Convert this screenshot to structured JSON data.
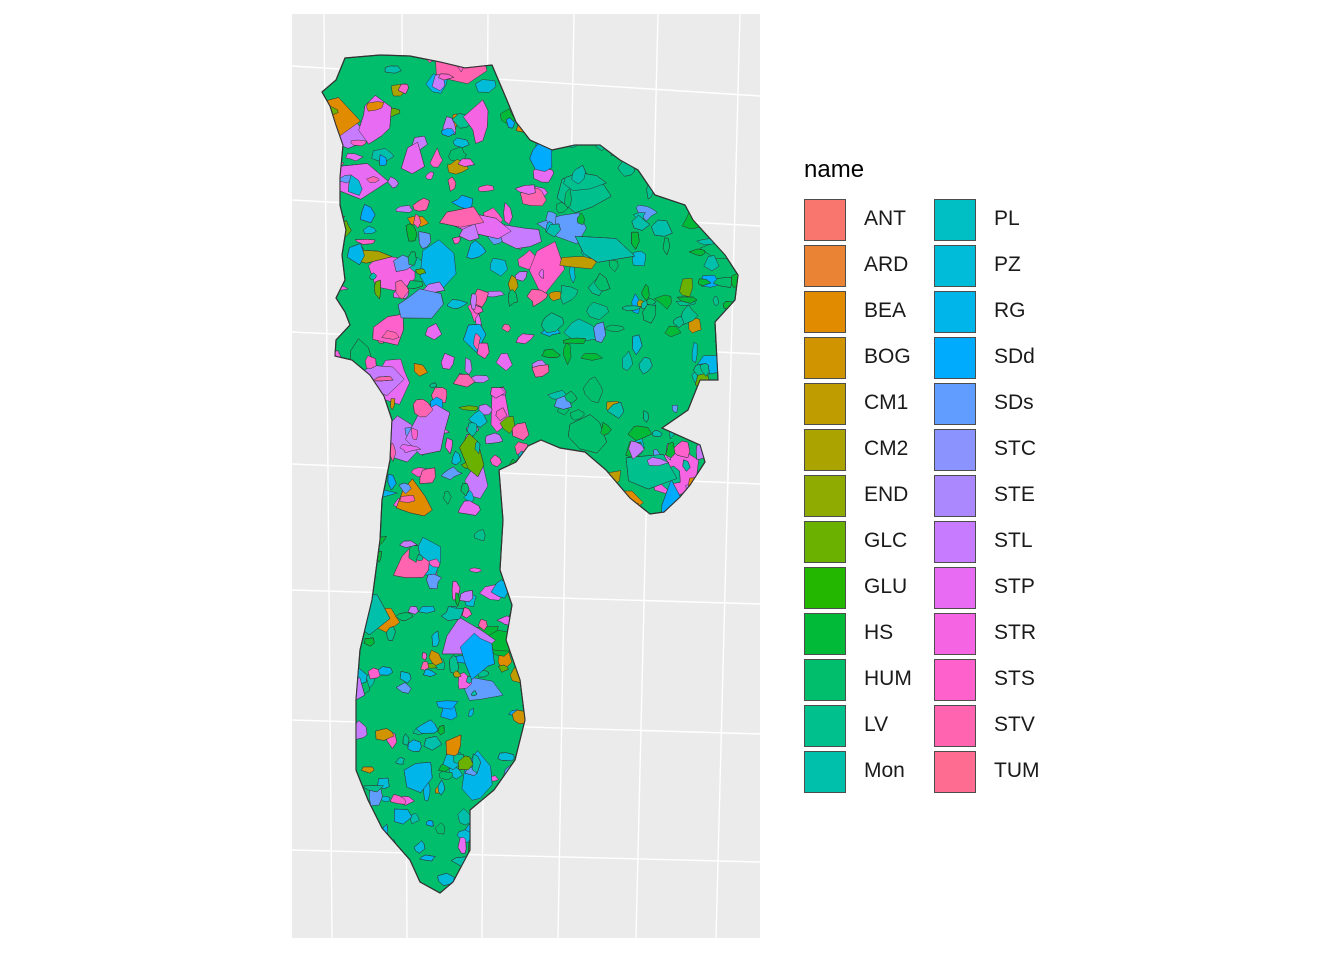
{
  "panel": {
    "background": "#ebebeb",
    "grid_color": "#ffffff",
    "outline_color": "#333333"
  },
  "legend": {
    "title": "name",
    "items": [
      {
        "label": "ANT",
        "color": "#F8766D"
      },
      {
        "label": "ARD",
        "color": "#EB8335"
      },
      {
        "label": "BEA",
        "color": "#E08B00"
      },
      {
        "label": "BOG",
        "color": "#D09400"
      },
      {
        "label": "CM1",
        "color": "#BF9C00"
      },
      {
        "label": "CM2",
        "color": "#AAA300"
      },
      {
        "label": "END",
        "color": "#8FAA00"
      },
      {
        "label": "GLC",
        "color": "#6BB100"
      },
      {
        "label": "GLU",
        "color": "#23B700"
      },
      {
        "label": "HS",
        "color": "#00BA38"
      },
      {
        "label": "HUM",
        "color": "#00BE6C"
      },
      {
        "label": "LV",
        "color": "#00C08E"
      },
      {
        "label": "Mon",
        "color": "#00C0AB"
      },
      {
        "label": "PL",
        "color": "#00BFC4"
      },
      {
        "label": "PZ",
        "color": "#00BCD8"
      },
      {
        "label": "RG",
        "color": "#00B5EA"
      },
      {
        "label": "SDd",
        "color": "#00ABFD"
      },
      {
        "label": "SDs",
        "color": "#619CFF"
      },
      {
        "label": "STC",
        "color": "#8B93FF"
      },
      {
        "label": "STE",
        "color": "#AC88FF"
      },
      {
        "label": "STL",
        "color": "#C77CFF"
      },
      {
        "label": "STP",
        "color": "#E76BF3"
      },
      {
        "label": "STR",
        "color": "#F564E3"
      },
      {
        "label": "STS",
        "color": "#FF61CC"
      },
      {
        "label": "STV",
        "color": "#FF64B0"
      },
      {
        "label": "TUM",
        "color": "#FF6C91"
      }
    ]
  }
}
